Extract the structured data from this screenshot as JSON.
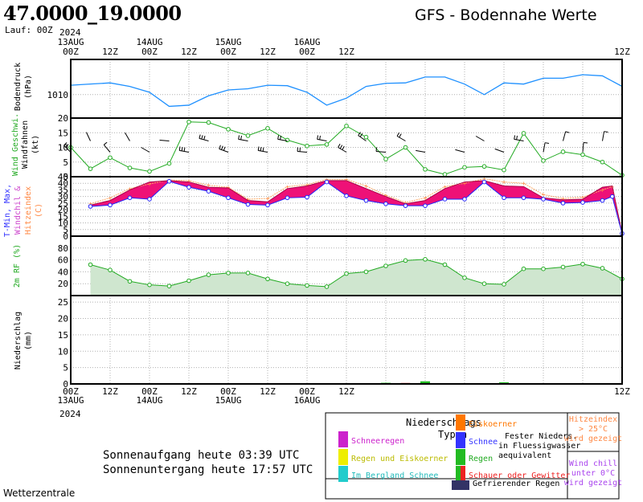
{
  "header": {
    "coords": "47.0000_19.0000",
    "run": "Lauf: 00Z",
    "title": "GFS - Bodennahe Werte"
  },
  "time_axis": {
    "ticks": [
      "00Z",
      "12Z",
      "00Z",
      "12Z",
      "00Z",
      "12Z",
      "00Z",
      "12Z"
    ],
    "dates": [
      {
        "tick": 0,
        "day": "13AUG",
        "year": "2024"
      },
      {
        "tick": 2,
        "day": "14AUG"
      },
      {
        "tick": 4,
        "day": "15AUG"
      },
      {
        "tick": 6,
        "day": "16AUG"
      }
    ]
  },
  "sun": {
    "rise": "Sonnenaufgang heute 03:39 UTC",
    "set": "Sonnenuntergang heute 17:57 UTC"
  },
  "source": "Wetterzentrale",
  "legend": {
    "header": "Niederschlags\nTypen",
    "items": {
      "schneeregen": {
        "label": "Schneeregen",
        "color": "#cc22cc"
      },
      "regen_eis": {
        "label": "Regen und Eiskoerner",
        "color": "#eeee00"
      },
      "bergland": {
        "label": "Im Bergland Schnee",
        "color": "#22cccc"
      },
      "eiskoerner": {
        "label": "Eiskoerner",
        "color": "#ff7700"
      },
      "schnee": {
        "label": "Schnee",
        "color": "#3333ff"
      },
      "regen": {
        "label": "Regen",
        "color": "#22bb22"
      },
      "schauer": {
        "label": "Schauer oder Gewitter",
        "color": "#ee2222"
      },
      "gefr": {
        "label": "Gefrierender Regen",
        "color": "#333366"
      }
    },
    "fester": "Fester Nieders.\nin Fluessigwasser\naequivalent",
    "hitze": "Hitzeindex\n> 25°C\nwird gezeigt",
    "chill": "Wind chill\nunter 0°C\nwird gezeigt"
  },
  "chart_data": [
    {
      "type": "line",
      "panel": "pressure",
      "ylabel": "Bodendruck\n(hPa)",
      "yticks": [
        1010
      ],
      "ylim": [
        1000,
        1025
      ],
      "x": [
        0,
        6,
        12,
        18,
        24,
        30,
        36,
        42,
        48,
        54,
        60,
        66,
        72,
        78,
        84,
        90,
        96,
        102,
        108,
        114,
        120,
        126,
        132,
        138,
        144,
        150,
        156,
        162,
        168
      ],
      "values": [
        1014,
        1014.5,
        1015,
        1013.5,
        1011,
        1005,
        1005.5,
        1009.5,
        1012,
        1012.5,
        1014,
        1013.8,
        1011,
        1005.5,
        1008.5,
        1013.5,
        1014.8,
        1015,
        1017.5,
        1017.5,
        1014.5,
        1010,
        1015,
        1014.5,
        1017,
        1017,
        1018.5,
        1018,
        1013.5
      ],
      "color": "#1e90ff"
    },
    {
      "type": "line",
      "panel": "wind",
      "ylabel": "Windfahnen\n(kt)",
      "ylabel2": "Wind Geschwi.",
      "yticks": [
        0,
        5,
        10,
        15,
        20
      ],
      "ylim": [
        0,
        20
      ],
      "x": [
        0,
        6,
        12,
        18,
        24,
        30,
        36,
        42,
        48,
        54,
        60,
        66,
        72,
        78,
        84,
        90,
        96,
        102,
        108,
        114,
        120,
        126,
        132,
        138,
        144,
        150,
        156,
        162,
        168
      ],
      "values": [
        10,
        2.7,
        6.5,
        3,
        1.8,
        4.5,
        18.7,
        18.5,
        16.2,
        14,
        16.5,
        12.5,
        10.5,
        11,
        17.3,
        13.5,
        6,
        10,
        2.5,
        0.8,
        3.2,
        3.5,
        2.3,
        14.8,
        5.5,
        8.5,
        7.5,
        5,
        0.5
      ],
      "color": "#22aa22"
    },
    {
      "type": "line",
      "panel": "temperature",
      "ylabel": "T-Min, Max,",
      "ylabel2": "Windchil &",
      "ylabel3": "Hitzeindex\n(C)",
      "yticks": [
        0,
        5,
        10,
        15,
        20,
        25,
        30,
        35,
        40,
        45
      ],
      "ylim": [
        0,
        45
      ],
      "x": [
        6,
        12,
        18,
        24,
        30,
        36,
        42,
        48,
        54,
        60,
        66,
        72,
        78,
        84,
        90,
        96,
        102,
        108,
        114,
        120,
        126,
        132,
        138,
        144,
        150,
        156,
        162,
        165,
        168
      ],
      "t_min": [
        22.5,
        23.5,
        29,
        28,
        41.5,
        37,
        34,
        29,
        24,
        23.5,
        29,
        29.5,
        41,
        30.5,
        27,
        24.5,
        23,
        23,
        28,
        28,
        41,
        29,
        29,
        28,
        25,
        25.5,
        27,
        30,
        2
      ],
      "t_max": [
        23.5,
        27,
        35,
        41,
        42,
        41,
        37,
        36.5,
        27,
        26,
        36,
        38,
        42,
        42,
        36,
        30,
        24.5,
        27,
        36,
        41,
        42,
        38,
        37.5,
        29,
        27.5,
        28,
        37,
        38,
        2
      ],
      "heat": [
        24.5,
        29,
        36,
        39.5,
        42.5,
        42,
        38.5,
        37,
        28,
        28.5,
        37.5,
        39,
        43,
        43,
        38,
        31,
        25.5,
        29,
        37.5,
        40,
        43.5,
        41,
        40,
        31.5,
        28.5,
        29.5,
        35,
        37.5,
        2
      ]
    },
    {
      "type": "area",
      "panel": "humidity",
      "ylabel": "2m RF (%)",
      "yticks": [
        20,
        40,
        60,
        80
      ],
      "ylim": [
        0,
        100
      ],
      "x": [
        6,
        12,
        18,
        24,
        30,
        36,
        42,
        48,
        54,
        60,
        66,
        72,
        78,
        84,
        90,
        96,
        102,
        108,
        114,
        120,
        126,
        132,
        138,
        144,
        150,
        156,
        162,
        168
      ],
      "values": [
        52,
        43,
        24,
        18,
        16,
        25,
        35,
        38,
        38,
        28,
        20,
        17,
        15,
        37,
        40,
        50,
        59,
        61,
        52,
        30,
        20,
        19,
        45,
        45,
        48,
        53,
        46,
        28
      ],
      "color": "#22aa22"
    },
    {
      "type": "bar",
      "panel": "precipitation",
      "ylabel": "Niederschlag\n(mm)",
      "yticks": [
        0,
        5,
        10,
        15,
        20,
        25
      ],
      "ylim": [
        0,
        27
      ],
      "x": [
        84,
        90,
        96,
        102,
        108,
        114,
        132
      ],
      "values": [
        0.25,
        0.2,
        0.35,
        0.3,
        0.8,
        0.15,
        0.5
      ],
      "colors": [
        "#22bb22",
        "#22bb22",
        "#22bb22",
        "#ee2222",
        "#22bb22",
        "#22bb22",
        "#22bb22"
      ]
    }
  ]
}
